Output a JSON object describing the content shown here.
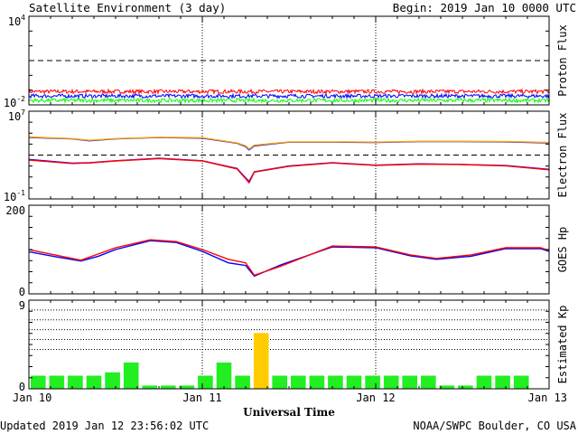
{
  "header": {
    "title": "Satellite Environment (3 day)",
    "begin": "Begin:  2019 Jan 10 0000 UTC"
  },
  "footer": {
    "updated": "Updated 2019 Jan 12 23:56:02 UTC",
    "credit": "NOAA/SWPC Boulder, CO USA"
  },
  "colors": {
    "red": "#ff0000",
    "blue": "#0000ff",
    "green": "#00ff00",
    "orange": "#ffa500",
    "kp_green": "#22ee22",
    "kp_yellow": "#ffcc00",
    "dash": "#000000"
  },
  "chart_data": [
    {
      "type": "line",
      "name": "proton-flux",
      "ylabel": "Proton Flux",
      "yscale": "log",
      "ylim": [
        0.01,
        10000
      ],
      "ytick_labels": [
        {
          "base": "10",
          "exp": "4"
        },
        {
          "base": "10",
          "exp": "-2"
        }
      ],
      "threshold": 10,
      "xlim": [
        0,
        3
      ],
      "series": [
        {
          "color": "#ff0000",
          "level": 0.08,
          "jitter": 0.13
        },
        {
          "color": "#0000ff",
          "level": 0.04,
          "jitter": 0.13
        },
        {
          "color": "#00ff00",
          "level": 0.02,
          "jitter": 0.13
        }
      ]
    },
    {
      "type": "line",
      "name": "electron-flux",
      "ylabel": "Electron Flux",
      "yscale": "log",
      "ylim": [
        0.1,
        10000000
      ],
      "ytick_labels": [
        {
          "base": "10",
          "exp": "7"
        },
        {
          "base": "10",
          "exp": "-1"
        }
      ],
      "threshold": 1000,
      "xlim": [
        0,
        3
      ],
      "series": [
        {
          "color": "#0000ff",
          "x": [
            0,
            0.25,
            0.35,
            0.5,
            0.75,
            1.0,
            1.2,
            1.25,
            1.27,
            1.3,
            1.5,
            1.75,
            2.0,
            2.25,
            2.5,
            2.75,
            3.0
          ],
          "y": [
            40000,
            30000,
            20000,
            30000,
            40000,
            35000,
            12000,
            6000,
            3000,
            7000,
            15000,
            15000,
            14000,
            17000,
            17000,
            16000,
            13000
          ]
        },
        {
          "color": "#ffa500",
          "x": [
            0,
            0.25,
            0.35,
            0.5,
            0.75,
            1.0,
            1.2,
            1.25,
            1.27,
            1.3,
            1.5,
            1.75,
            2.0,
            2.25,
            2.5,
            2.75,
            3.0
          ],
          "y": [
            45000,
            32000,
            22000,
            32000,
            42000,
            38000,
            13000,
            7000,
            3500,
            8000,
            16000,
            16000,
            15000,
            18000,
            18000,
            17000,
            14000
          ]
        },
        {
          "color": "#0000ff",
          "x": [
            0,
            0.25,
            0.35,
            0.5,
            0.75,
            1.0,
            1.2,
            1.25,
            1.27,
            1.3,
            1.5,
            1.75,
            2.0,
            2.25,
            2.5,
            2.75,
            3.0
          ],
          "y": [
            400,
            180,
            200,
            300,
            500,
            300,
            60,
            8,
            4,
            30,
            100,
            200,
            120,
            160,
            140,
            110,
            50
          ]
        },
        {
          "color": "#ff0000",
          "x": [
            0,
            0.25,
            0.35,
            0.5,
            0.75,
            1.0,
            1.2,
            1.25,
            1.27,
            1.3,
            1.5,
            1.75,
            2.0,
            2.25,
            2.5,
            2.75,
            3.0
          ],
          "y": [
            350,
            170,
            190,
            290,
            480,
            290,
            55,
            7,
            3,
            28,
            95,
            190,
            115,
            150,
            135,
            105,
            45
          ]
        }
      ]
    },
    {
      "type": "line",
      "name": "goes-hp",
      "ylabel": "GOES Hp",
      "yscale": "linear",
      "ylim": [
        0,
        200
      ],
      "ytick_labels": [
        {
          "base": "200",
          "exp": ""
        },
        {
          "base": "0",
          "exp": ""
        }
      ],
      "xlim": [
        0,
        3
      ],
      "series": [
        {
          "color": "#0000ff",
          "x": [
            0,
            0.15,
            0.3,
            0.4,
            0.5,
            0.7,
            0.85,
            1.0,
            1.15,
            1.25,
            1.3,
            1.45,
            1.75,
            2.0,
            2.2,
            2.35,
            2.55,
            2.75,
            2.95,
            3.0
          ],
          "y": [
            95,
            84,
            74,
            85,
            100,
            120,
            116,
            96,
            70,
            64,
            40,
            65,
            106,
            104,
            86,
            78,
            85,
            102,
            102,
            96
          ]
        },
        {
          "color": "#ff0000",
          "x": [
            0,
            0.15,
            0.3,
            0.4,
            0.5,
            0.7,
            0.85,
            1.0,
            1.15,
            1.25,
            1.3,
            1.45,
            1.75,
            2.0,
            2.2,
            2.35,
            2.55,
            2.75,
            2.95,
            3.0
          ],
          "y": [
            100,
            88,
            76,
            90,
            104,
            122,
            118,
            100,
            78,
            70,
            42,
            62,
            108,
            106,
            88,
            80,
            88,
            104,
            104,
            98
          ]
        }
      ]
    },
    {
      "type": "bar",
      "name": "estimated-kp",
      "ylabel": "Estimated Kp",
      "ylim": [
        0,
        9
      ],
      "ytick_labels": [
        {
          "base": "9",
          "exp": ""
        },
        {
          "base": "0",
          "exp": ""
        }
      ],
      "dotted_levels": [
        4,
        5,
        6,
        7,
        8
      ],
      "xlim": [
        0,
        3
      ],
      "bin_hours": 3,
      "values": [
        1.33,
        1.33,
        1.33,
        1.33,
        1.67,
        2.67,
        0.33,
        0.33,
        0.33,
        1.33,
        2.67,
        1.33,
        5.67,
        1.33,
        1.33,
        1.33,
        1.33,
        1.33,
        1.33,
        1.33,
        1.33,
        1.33,
        0.33,
        0.33,
        1.33,
        1.33,
        1.33,
        0
      ],
      "x_labels": [
        "Jan 10",
        "Jan 11",
        "Jan 12",
        "Jan 13"
      ],
      "xlabel": "Universal Time"
    }
  ]
}
